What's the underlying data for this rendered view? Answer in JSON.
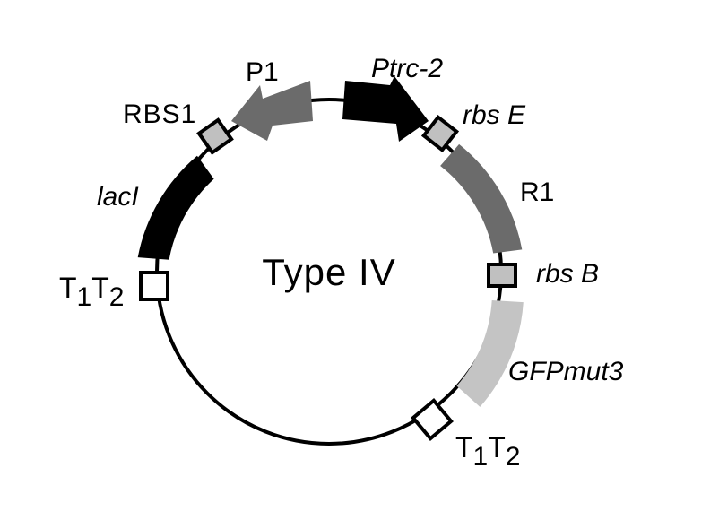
{
  "title": "Type IV",
  "colors": {
    "backbone": "#000000",
    "black_part": "#000000",
    "dark_gray_part": "#6b6b6b",
    "light_gray_part": "#c4c4c4",
    "rbs_fill": "#c0c0c0",
    "terminator_fill": "#ffffff"
  },
  "labels": {
    "p1": "P1",
    "ptrc2": "Ptrc-2",
    "rbs1": "RBS1",
    "rbs_e": "rbs E",
    "laci": "lacI",
    "r1": "R1",
    "rbs_b": "rbs B",
    "gfpmut3": "GFPmut3",
    "t_left_base1": "T",
    "t_left_sub1": "1",
    "t_left_base2": "T",
    "t_left_sub2": "2",
    "t_right_base1": "T",
    "t_right_sub1": "1",
    "t_right_base2": "T",
    "t_right_sub2": "2"
  }
}
